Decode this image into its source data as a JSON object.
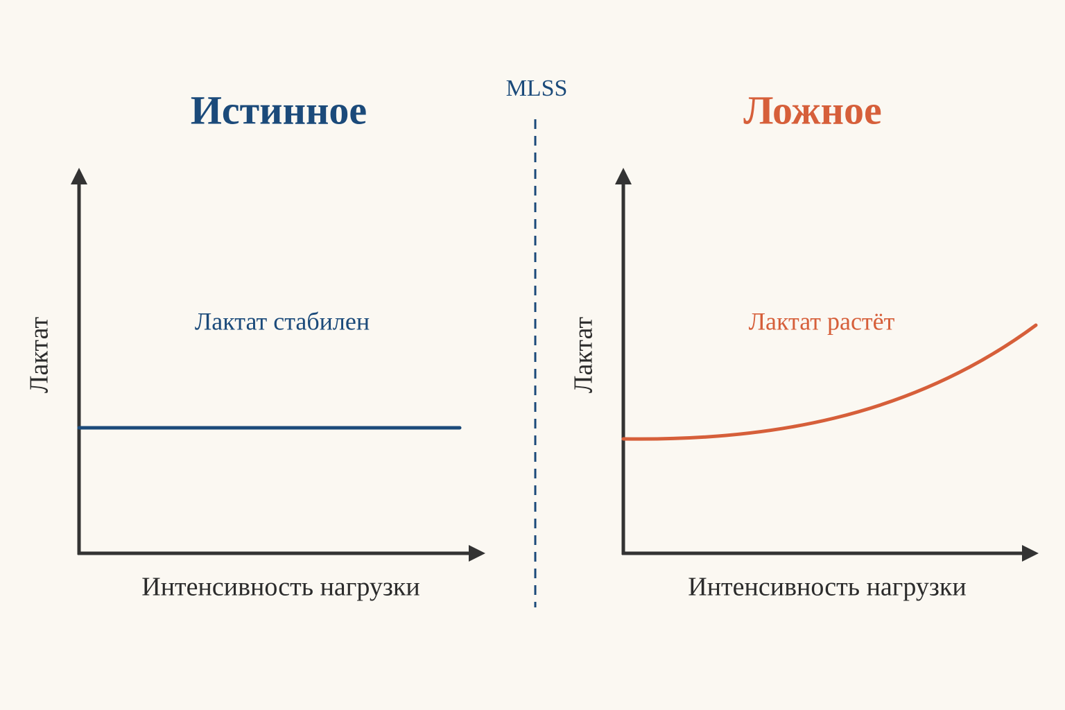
{
  "divider_label": "MLSS",
  "panels": [
    {
      "title": "Истинное",
      "annotation": "Лактат стабилен",
      "y_axis_label": "Лактат",
      "x_axis_label": "Интенсивность нагрузки"
    },
    {
      "title": "Ложное",
      "annotation": "Лактат растёт",
      "y_axis_label": "Лактат",
      "x_axis_label": "Интенсивность нагрузки"
    }
  ]
}
